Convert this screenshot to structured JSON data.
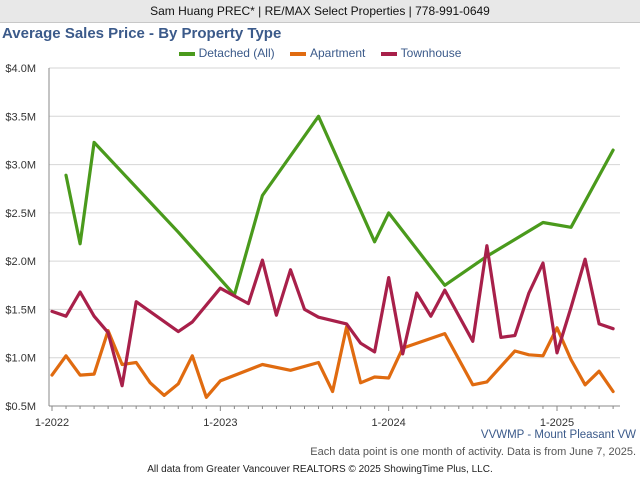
{
  "header": {
    "banner": "Sam Huang PREC* | RE/MAX Select Properties | 778-991-0649"
  },
  "footer": {
    "region": "VVWMP - Mount Pleasant VW",
    "note": "Each data point is one month of activity. Data is from June 7, 2025.",
    "credit": "All data from Greater Vancouver REALTORS © 2025 ShowingTime Plus, LLC."
  },
  "chart_data": {
    "type": "line",
    "title": "Average Sales Price - By Property Type",
    "xlabel": "",
    "ylabel": "",
    "x_ticks": [
      "1-2022",
      "1-2023",
      "1-2024",
      "1-2025"
    ],
    "y_ticks": [
      "$0.5M",
      "$1.0M",
      "$1.5M",
      "$2.0M",
      "$2.5M",
      "$3.0M",
      "$3.5M",
      "$4.0M"
    ],
    "ylim": [
      0.5,
      4.0
    ],
    "y_unit": "$M",
    "grid": true,
    "legend_position": "top",
    "series": [
      {
        "name": "Detached (All)",
        "color": "#4a9a1c",
        "points": [
          {
            "x": "2022-02",
            "y": 2.89
          },
          {
            "x": "2022-03",
            "y": 2.18
          },
          {
            "x": "2022-04",
            "y": 3.23
          },
          {
            "x": "2022-10",
            "y": 2.3
          },
          {
            "x": "2023-02",
            "y": 1.65
          },
          {
            "x": "2023-04",
            "y": 2.68
          },
          {
            "x": "2023-08",
            "y": 3.5
          },
          {
            "x": "2023-12",
            "y": 2.2
          },
          {
            "x": "2024-01",
            "y": 2.5
          },
          {
            "x": "2024-05",
            "y": 1.75
          },
          {
            "x": "2024-08",
            "y": 2.05
          },
          {
            "x": "2024-12",
            "y": 2.4
          },
          {
            "x": "2025-02",
            "y": 2.35
          },
          {
            "x": "2025-05",
            "y": 3.15
          }
        ]
      },
      {
        "name": "Apartment",
        "color": "#e06b10",
        "points": [
          {
            "x": "2022-01",
            "y": 0.82
          },
          {
            "x": "2022-02",
            "y": 1.02
          },
          {
            "x": "2022-03",
            "y": 0.82
          },
          {
            "x": "2022-04",
            "y": 0.83
          },
          {
            "x": "2022-05",
            "y": 1.28
          },
          {
            "x": "2022-06",
            "y": 0.93
          },
          {
            "x": "2022-07",
            "y": 0.95
          },
          {
            "x": "2022-08",
            "y": 0.74
          },
          {
            "x": "2022-09",
            "y": 0.61
          },
          {
            "x": "2022-10",
            "y": 0.73
          },
          {
            "x": "2022-11",
            "y": 1.02
          },
          {
            "x": "2022-12",
            "y": 0.59
          },
          {
            "x": "2023-01",
            "y": 0.76
          },
          {
            "x": "2023-04",
            "y": 0.93
          },
          {
            "x": "2023-06",
            "y": 0.87
          },
          {
            "x": "2023-08",
            "y": 0.95
          },
          {
            "x": "2023-09",
            "y": 0.65
          },
          {
            "x": "2023-10",
            "y": 1.32
          },
          {
            "x": "2023-11",
            "y": 0.74
          },
          {
            "x": "2023-12",
            "y": 0.8
          },
          {
            "x": "2024-01",
            "y": 0.79
          },
          {
            "x": "2024-02",
            "y": 1.1
          },
          {
            "x": "2024-05",
            "y": 1.25
          },
          {
            "x": "2024-07",
            "y": 0.72
          },
          {
            "x": "2024-08",
            "y": 0.75
          },
          {
            "x": "2024-10",
            "y": 1.07
          },
          {
            "x": "2024-11",
            "y": 1.03
          },
          {
            "x": "2024-12",
            "y": 1.02
          },
          {
            "x": "2025-01",
            "y": 1.31
          },
          {
            "x": "2025-02",
            "y": 0.98
          },
          {
            "x": "2025-03",
            "y": 0.72
          },
          {
            "x": "2025-04",
            "y": 0.86
          },
          {
            "x": "2025-05",
            "y": 0.65
          }
        ]
      },
      {
        "name": "Townhouse",
        "color": "#a8204a",
        "points": [
          {
            "x": "2022-01",
            "y": 1.48
          },
          {
            "x": "2022-02",
            "y": 1.43
          },
          {
            "x": "2022-03",
            "y": 1.68
          },
          {
            "x": "2022-04",
            "y": 1.43
          },
          {
            "x": "2022-05",
            "y": 1.26
          },
          {
            "x": "2022-06",
            "y": 0.71
          },
          {
            "x": "2022-07",
            "y": 1.58
          },
          {
            "x": "2022-10",
            "y": 1.27
          },
          {
            "x": "2022-11",
            "y": 1.37
          },
          {
            "x": "2023-01",
            "y": 1.72
          },
          {
            "x": "2023-03",
            "y": 1.56
          },
          {
            "x": "2023-04",
            "y": 2.01
          },
          {
            "x": "2023-05",
            "y": 1.44
          },
          {
            "x": "2023-06",
            "y": 1.91
          },
          {
            "x": "2023-07",
            "y": 1.5
          },
          {
            "x": "2023-08",
            "y": 1.42
          },
          {
            "x": "2023-10",
            "y": 1.35
          },
          {
            "x": "2023-11",
            "y": 1.15
          },
          {
            "x": "2023-12",
            "y": 1.06
          },
          {
            "x": "2024-01",
            "y": 1.83
          },
          {
            "x": "2024-02",
            "y": 1.04
          },
          {
            "x": "2024-03",
            "y": 1.67
          },
          {
            "x": "2024-04",
            "y": 1.43
          },
          {
            "x": "2024-05",
            "y": 1.7
          },
          {
            "x": "2024-07",
            "y": 1.17
          },
          {
            "x": "2024-08",
            "y": 2.16
          },
          {
            "x": "2024-09",
            "y": 1.21
          },
          {
            "x": "2024-10",
            "y": 1.23
          },
          {
            "x": "2024-11",
            "y": 1.67
          },
          {
            "x": "2024-12",
            "y": 1.98
          },
          {
            "x": "2025-01",
            "y": 1.05
          },
          {
            "x": "2025-02",
            "y": 1.52
          },
          {
            "x": "2025-03",
            "y": 2.02
          },
          {
            "x": "2025-04",
            "y": 1.35
          },
          {
            "x": "2025-05",
            "y": 1.3
          }
        ]
      }
    ]
  }
}
